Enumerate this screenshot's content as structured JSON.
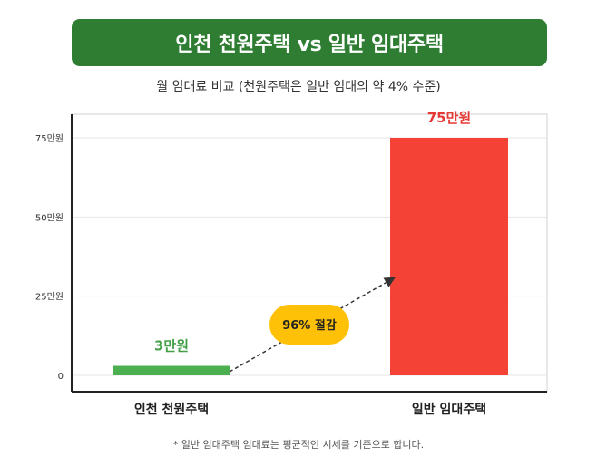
{
  "header": {
    "title": "인천 천원주택 vs 일반 임대주택",
    "subtitle": "월 임대료 비교 (천원주택은 일반 임대의 약 4% 수준)"
  },
  "footnote": "* 일반 임대주택 임대료는 평균적인 시세를 기준으로 합니다.",
  "colors": {
    "banner": "#2e7d32",
    "incheon": "#4caf50",
    "incheon_label": "#43a047",
    "general": "#f44336",
    "general_label": "#e53935",
    "badge": "#ffc107"
  },
  "chart_data": {
    "type": "bar",
    "categories": [
      "인천 천원주택",
      "일반 임대주택"
    ],
    "values": [
      3,
      75
    ],
    "value_labels": [
      "3만원",
      "75만원"
    ],
    "yticks": [
      0,
      25,
      50,
      75
    ],
    "ytick_labels": [
      "0",
      "25만원",
      "50만원",
      "75만원"
    ],
    "ylim": [
      0,
      75
    ],
    "grid": true,
    "annotation": "96% 절감"
  }
}
